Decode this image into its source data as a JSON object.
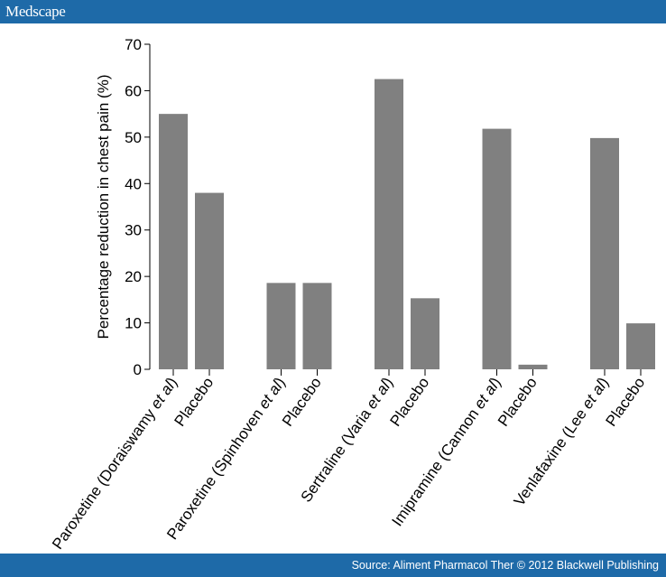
{
  "header": {
    "brand": "Medscape"
  },
  "footer": {
    "source": "Source: Aliment Pharmacol Ther © 2012 Blackwell Publishing"
  },
  "colors": {
    "header_bar": "#1e6aa8",
    "bar": "#808080"
  },
  "chart_data": {
    "type": "bar",
    "title": "",
    "xlabel": "",
    "ylabel": "Percentage reduction in chest pain (%)",
    "ylim": [
      0,
      70
    ],
    "yticks": [
      0,
      10,
      20,
      30,
      40,
      50,
      60,
      70
    ],
    "grid": false,
    "categories": [
      {
        "pre": "Paroxetine (Doraiswamy ",
        "ital": "et al",
        "post": ")"
      },
      {
        "pre": "Placebo",
        "ital": "",
        "post": ""
      },
      {
        "pre": "Paroxetine (Spinhoven ",
        "ital": "et al",
        "post": ")"
      },
      {
        "pre": "Placebo",
        "ital": "",
        "post": ""
      },
      {
        "pre": "Sertraline (Varia ",
        "ital": "et al",
        "post": ")"
      },
      {
        "pre": "Placebo",
        "ital": "",
        "post": ""
      },
      {
        "pre": "Imipramine (Cannon ",
        "ital": "et al",
        "post": ")"
      },
      {
        "pre": "Placebo",
        "ital": "",
        "post": ""
      },
      {
        "pre": "Venlafaxine (Lee ",
        "ital": "et al",
        "post": ")"
      },
      {
        "pre": "Placebo",
        "ital": "",
        "post": ""
      }
    ],
    "values": [
      55,
      38,
      18.6,
      18.6,
      62.5,
      15.3,
      51.8,
      1,
      49.8,
      9.9
    ]
  }
}
